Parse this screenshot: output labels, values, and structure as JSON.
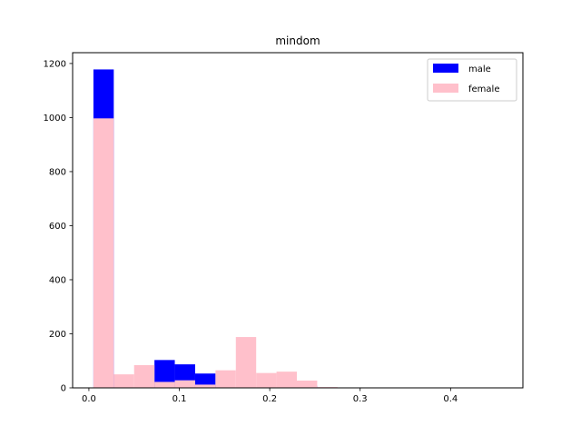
{
  "chart_data": {
    "type": "bar",
    "title": "mindom",
    "xlabel": "",
    "ylabel": "",
    "xlim": [
      -0.018,
      0.48
    ],
    "ylim": [
      0,
      1240
    ],
    "xticks": [
      0.0,
      0.1,
      0.2,
      0.3,
      0.4
    ],
    "xtick_labels": [
      "0.0",
      "0.1",
      "0.2",
      "0.3",
      "0.4"
    ],
    "yticks": [
      0,
      200,
      400,
      600,
      800,
      1000,
      1200
    ],
    "ytick_labels": [
      "0",
      "200",
      "400",
      "600",
      "800",
      "1000",
      "1200"
    ],
    "grid": false,
    "legend_position": "top-right",
    "series": [
      {
        "name": "male",
        "color": "#0000ff",
        "bins": [
          {
            "x0": 0.005,
            "x1": 0.0275,
            "value": 1178
          },
          {
            "x0": 0.0275,
            "x1": 0.05,
            "value": 0
          },
          {
            "x0": 0.05,
            "x1": 0.0725,
            "value": 0
          },
          {
            "x0": 0.0725,
            "x1": 0.095,
            "value": 103
          },
          {
            "x0": 0.095,
            "x1": 0.1175,
            "value": 87
          },
          {
            "x0": 0.1175,
            "x1": 0.14,
            "value": 53
          },
          {
            "x0": 0.14,
            "x1": 0.1625,
            "value": 0
          },
          {
            "x0": 0.1625,
            "x1": 0.185,
            "value": 0
          },
          {
            "x0": 0.185,
            "x1": 0.2075,
            "value": 0
          },
          {
            "x0": 0.2075,
            "x1": 0.23,
            "value": 0
          },
          {
            "x0": 0.23,
            "x1": 0.2525,
            "value": 8
          },
          {
            "x0": 0.2525,
            "x1": 0.275,
            "value": 0
          },
          {
            "x0": 0.275,
            "x1": 0.2975,
            "value": 0
          },
          {
            "x0": 0.2975,
            "x1": 0.32,
            "value": 0
          },
          {
            "x0": 0.32,
            "x1": 0.3425,
            "value": 0
          },
          {
            "x0": 0.3425,
            "x1": 0.365,
            "value": 0
          },
          {
            "x0": 0.365,
            "x1": 0.3875,
            "value": 0
          },
          {
            "x0": 0.3875,
            "x1": 0.41,
            "value": 0
          },
          {
            "x0": 0.41,
            "x1": 0.4325,
            "value": 0
          },
          {
            "x0": 0.4325,
            "x1": 0.455,
            "value": 0
          }
        ]
      },
      {
        "name": "female",
        "color": "#ffc0cb",
        "bins": [
          {
            "x0": 0.005,
            "x1": 0.0275,
            "value": 997
          },
          {
            "x0": 0.0275,
            "x1": 0.05,
            "value": 50
          },
          {
            "x0": 0.05,
            "x1": 0.0725,
            "value": 84
          },
          {
            "x0": 0.0725,
            "x1": 0.095,
            "value": 22
          },
          {
            "x0": 0.095,
            "x1": 0.1175,
            "value": 28
          },
          {
            "x0": 0.1175,
            "x1": 0.14,
            "value": 12
          },
          {
            "x0": 0.14,
            "x1": 0.1625,
            "value": 65
          },
          {
            "x0": 0.1625,
            "x1": 0.185,
            "value": 188
          },
          {
            "x0": 0.185,
            "x1": 0.2075,
            "value": 55
          },
          {
            "x0": 0.2075,
            "x1": 0.23,
            "value": 60
          },
          {
            "x0": 0.23,
            "x1": 0.2525,
            "value": 27
          },
          {
            "x0": 0.2525,
            "x1": 0.275,
            "value": 3
          },
          {
            "x0": 0.275,
            "x1": 0.2975,
            "value": 1
          },
          {
            "x0": 0.2975,
            "x1": 0.32,
            "value": 0
          },
          {
            "x0": 0.32,
            "x1": 0.3425,
            "value": 0
          },
          {
            "x0": 0.3425,
            "x1": 0.365,
            "value": 0
          },
          {
            "x0": 0.365,
            "x1": 0.3875,
            "value": 0
          },
          {
            "x0": 0.3875,
            "x1": 0.41,
            "value": 0
          },
          {
            "x0": 0.41,
            "x1": 0.4325,
            "value": 0
          },
          {
            "x0": 0.4325,
            "x1": 0.455,
            "value": 1
          }
        ]
      }
    ]
  }
}
